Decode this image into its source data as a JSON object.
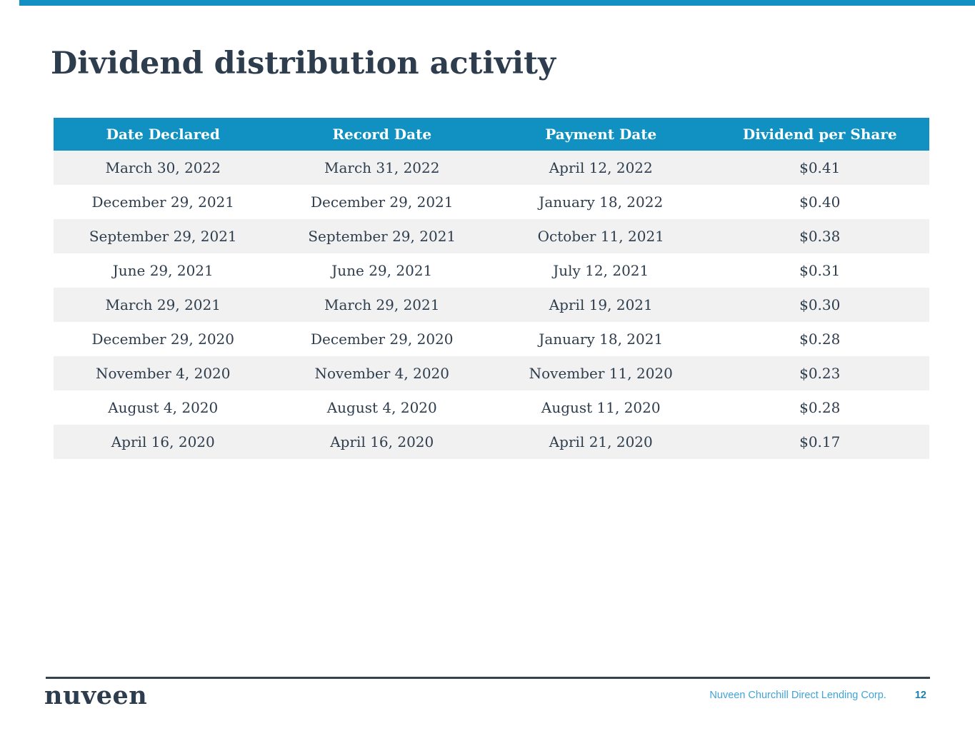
{
  "slide": {
    "title": "Dividend distribution activity"
  },
  "colors": {
    "accent_blue": "#1191C2",
    "dark_navy_text": "#2E3D4D",
    "header_text": "#FFFFFF",
    "row_alternate_gray": "#F1F1F1",
    "footer_rule_dark": "#37424B",
    "footer_company_blue": "#41A3D8",
    "footer_page_number_blue": "#1A7FAD"
  },
  "table": {
    "columns": [
      "Date Declared",
      "Record Date",
      "Payment Date",
      "Dividend per Share"
    ],
    "rows": [
      [
        "March 30, 2022",
        "March 31, 2022",
        "April 12, 2022",
        "$0.41"
      ],
      [
        "December 29, 2021",
        "December 29, 2021",
        "January 18, 2022",
        "$0.40"
      ],
      [
        "September 29, 2021",
        "September 29, 2021",
        "October 11, 2021",
        "$0.38"
      ],
      [
        "June 29, 2021",
        "June 29, 2021",
        "July 12, 2021",
        "$0.31"
      ],
      [
        "March 29, 2021",
        "March 29, 2021",
        "April 19, 2021",
        "$0.30"
      ],
      [
        "December 29, 2020",
        "December 29, 2020",
        "January 18, 2021",
        "$0.28"
      ],
      [
        "November 4, 2020",
        "November 4, 2020",
        "November 11, 2020",
        "$0.23"
      ],
      [
        "August 4, 2020",
        "August 4, 2020",
        "August 11, 2020",
        "$0.28"
      ],
      [
        "April 16, 2020",
        "April 16, 2020",
        "April 21, 2020",
        "$0.17"
      ]
    ]
  },
  "footer": {
    "logo_text": "nuveen",
    "company_name": "Nuveen Churchill Direct Lending Corp.",
    "page_number": "12"
  }
}
